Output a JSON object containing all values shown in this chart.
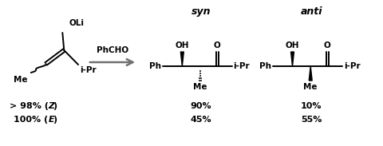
{
  "bg_color": "#ffffff",
  "syn_label": "syn",
  "anti_label": "anti",
  "reagent": "PhCHO",
  "text_color": "#000000",
  "arrow_color": "#707070",
  "line_color": "#000000",
  "syn_pct1": "90%",
  "syn_pct2": "45%",
  "anti_pct1": "10%",
  "anti_pct2": "55%",
  "figw": 4.81,
  "figh": 1.83,
  "dpi": 100
}
